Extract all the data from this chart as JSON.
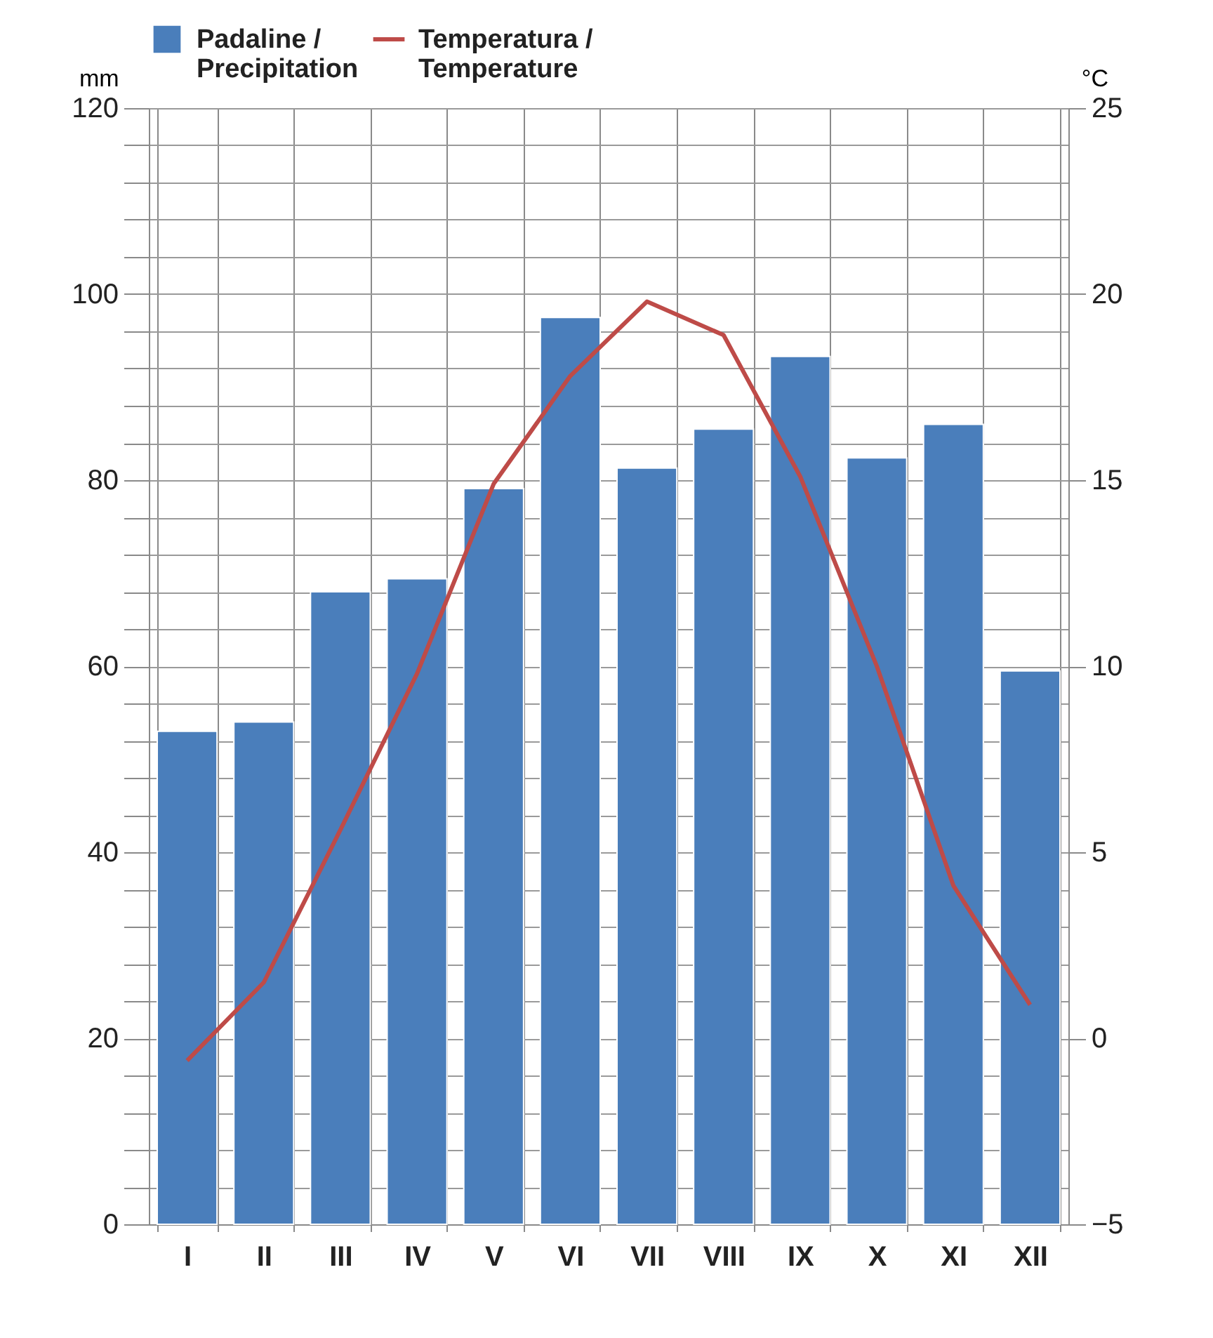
{
  "chart_data": {
    "type": "bar",
    "categories": [
      "I",
      "II",
      "III",
      "IV",
      "V",
      "VI",
      "VII",
      "VIII",
      "IX",
      "X",
      "XI",
      "XII"
    ],
    "series": [
      {
        "name": "Padaline / Precipitation",
        "color": "#4a7ebb",
        "values": [
          53,
          54,
          68,
          69.4,
          79.1,
          97.5,
          81.3,
          85.5,
          93.3,
          82.4,
          86,
          59.5
        ]
      },
      {
        "name": "Temperatura / Temperature",
        "type": "line",
        "axis": "y2",
        "color": "#be4b48",
        "values": [
          -0.6,
          1.5,
          5.6,
          9.8,
          14.9,
          17.8,
          19.8,
          18.9,
          15.1,
          10,
          4.1,
          0.9
        ]
      }
    ],
    "ylabel": "mm",
    "y2label": "°C",
    "ylim": [
      0,
      120
    ],
    "yticks": [
      0,
      {
        "value": 4,
        "label": null
      },
      {
        "value": 8,
        "label": null
      },
      {
        "value": 12,
        "label": null
      },
      {
        "value": 16,
        "label": null
      },
      20,
      {
        "value": 24,
        "label": null
      },
      {
        "value": 28,
        "label": null
      },
      {
        "value": 32,
        "label": null
      },
      {
        "value": 36,
        "label": null
      },
      40,
      {
        "value": 44,
        "label": null
      },
      {
        "value": 48,
        "label": null
      },
      {
        "value": 52,
        "label": null
      },
      {
        "value": 56,
        "label": null
      },
      60,
      {
        "value": 64,
        "label": null
      },
      {
        "value": 68,
        "label": null
      },
      {
        "value": 72,
        "label": null
      },
      {
        "value": 76,
        "label": null
      },
      80,
      {
        "value": 84,
        "label": null
      },
      {
        "value": 88,
        "label": null
      },
      {
        "value": 92,
        "label": null
      },
      {
        "value": 96,
        "label": null
      },
      100,
      {
        "value": 104,
        "label": null
      },
      {
        "value": 108,
        "label": null
      },
      {
        "value": 112,
        "label": null
      },
      {
        "value": 116,
        "label": null
      },
      120
    ],
    "y2lim": [
      -5,
      25
    ],
    "y2ticks": [
      -5,
      0,
      5,
      10,
      15,
      20,
      25
    ],
    "grid": true,
    "legend": "top",
    "line_style": "solid"
  }
}
